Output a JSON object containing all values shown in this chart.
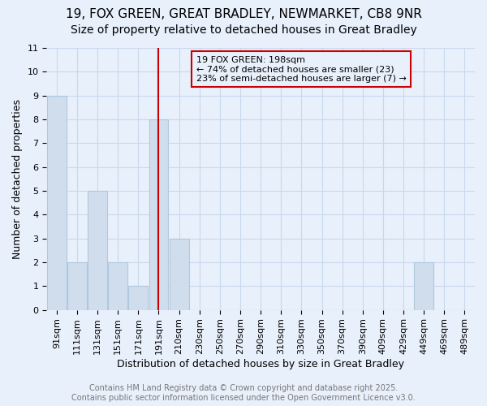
{
  "title1": "19, FOX GREEN, GREAT BRADLEY, NEWMARKET, CB8 9NR",
  "title2": "Size of property relative to detached houses in Great Bradley",
  "xlabel": "Distribution of detached houses by size in Great Bradley",
  "ylabel": "Number of detached properties",
  "annotation_line1": "19 FOX GREEN: 198sqm",
  "annotation_line2": "← 74% of detached houses are smaller (23)",
  "annotation_line3": "23% of semi-detached houses are larger (7) →",
  "categories": [
    "91sqm",
    "111sqm",
    "131sqm",
    "151sqm",
    "171sqm",
    "191sqm",
    "210sqm",
    "230sqm",
    "250sqm",
    "270sqm",
    "290sqm",
    "310sqm",
    "330sqm",
    "350sqm",
    "370sqm",
    "390sqm",
    "409sqm",
    "429sqm",
    "449sqm",
    "469sqm",
    "489sqm"
  ],
  "values": [
    9,
    2,
    5,
    2,
    1,
    8,
    3,
    0,
    0,
    0,
    0,
    0,
    0,
    0,
    0,
    0,
    0,
    0,
    2,
    0,
    0
  ],
  "bar_color": "#cfdded",
  "bar_edge_color": "#b0c8de",
  "reference_line_x": 5,
  "reference_line_color": "#cc0000",
  "ylim": [
    0,
    11
  ],
  "yticks": [
    0,
    1,
    2,
    3,
    4,
    5,
    6,
    7,
    8,
    9,
    10,
    11
  ],
  "grid_color": "#c8d8ec",
  "background_color": "#e8f0fb",
  "plot_bg_color": "#e8f0fb",
  "annotation_box_edge": "#cc0000",
  "footer": "Contains HM Land Registry data © Crown copyright and database right 2025.\nContains public sector information licensed under the Open Government Licence v3.0.",
  "title_fontsize": 11,
  "subtitle_fontsize": 10,
  "ylabel_fontsize": 9,
  "xlabel_fontsize": 9,
  "tick_fontsize": 8,
  "annotation_fontsize": 8,
  "footer_fontsize": 7,
  "footer_color": "#777777"
}
